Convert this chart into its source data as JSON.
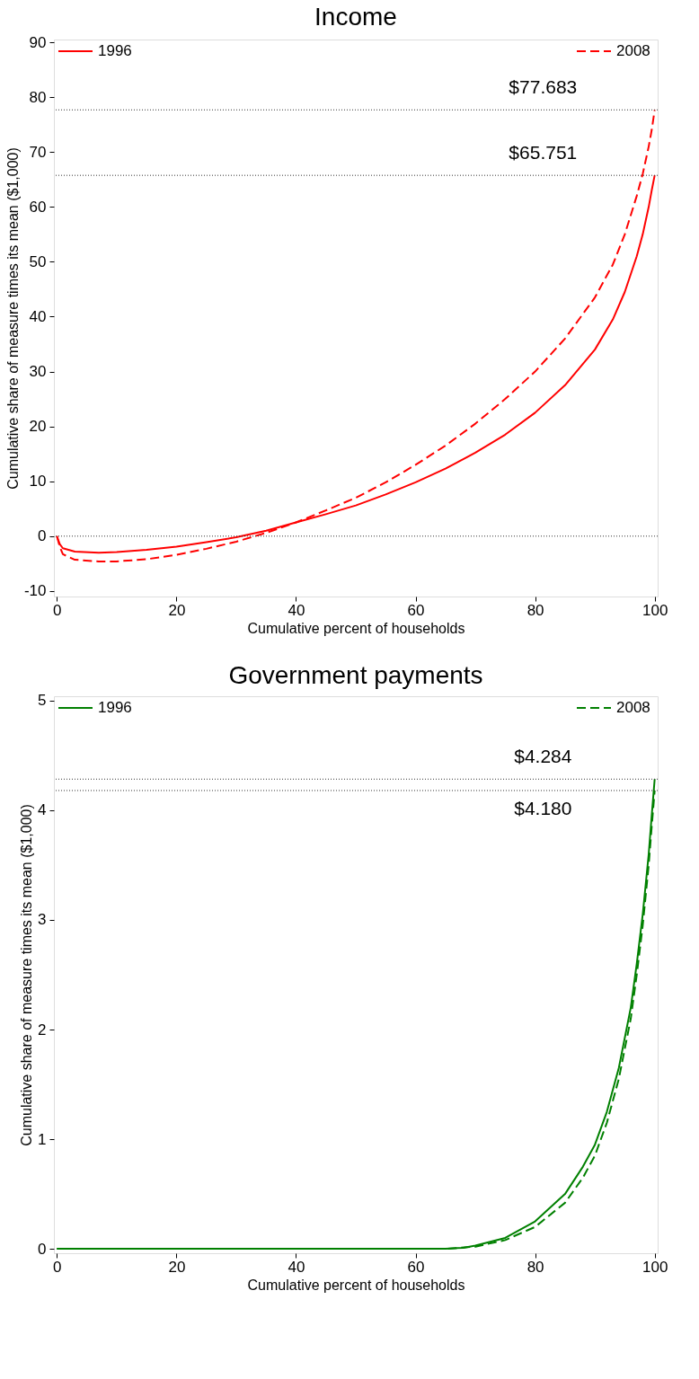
{
  "chart_data": [
    {
      "type": "line",
      "title": "Income",
      "xlabel": "Cumulative percent of households",
      "ylabel": "Cumulative share of measure times its mean ($1,000)",
      "xlim": [
        -0.5,
        100.5
      ],
      "xticks": [
        0,
        20,
        40,
        60,
        80,
        100
      ],
      "ylim": [
        -11,
        90.5
      ],
      "yticks": [
        -10,
        0,
        10,
        20,
        30,
        40,
        50,
        60,
        70,
        80,
        90
      ],
      "grid": false,
      "legend": "top",
      "ref_lines": [
        {
          "axis": "y",
          "value": 77.683,
          "label": "$77.683",
          "line_style": "dotted",
          "color": "#333333"
        },
        {
          "axis": "y",
          "value": 65.751,
          "label": "$65.751",
          "line_style": "dotted",
          "color": "#333333"
        },
        {
          "axis": "y",
          "value": 0,
          "label": null,
          "line_style": "dotted",
          "color": "#333333"
        }
      ],
      "series": [
        {
          "name": "1996",
          "color": "#ff0000",
          "line_style": "solid",
          "x": [
            0,
            0.5,
            1,
            3,
            7,
            10,
            15,
            20,
            25,
            30,
            35,
            40,
            45,
            50,
            55,
            60,
            65,
            70,
            75,
            80,
            85,
            90,
            93,
            95,
            97,
            98,
            99,
            99.5,
            100
          ],
          "values": [
            0,
            -1.5,
            -2.2,
            -2.8,
            -3.0,
            -2.9,
            -2.5,
            -1.9,
            -1.1,
            -0.2,
            1.0,
            2.5,
            4.0,
            5.6,
            7.6,
            9.8,
            12.3,
            15.2,
            18.5,
            22.5,
            27.5,
            34,
            39.5,
            44.5,
            51,
            55,
            60,
            63,
            65.751
          ]
        },
        {
          "name": "2008",
          "color": "#ff0000",
          "line_style": "dashed",
          "x": [
            0,
            0.5,
            1,
            3,
            7,
            10,
            15,
            20,
            25,
            30,
            35,
            40,
            45,
            50,
            55,
            60,
            65,
            70,
            75,
            80,
            85,
            90,
            93,
            95,
            97,
            98,
            99,
            99.5,
            100
          ],
          "values": [
            0,
            -2.0,
            -3.3,
            -4.3,
            -4.6,
            -4.6,
            -4.2,
            -3.4,
            -2.3,
            -1.0,
            0.6,
            2.5,
            4.7,
            7.0,
            9.8,
            13.0,
            16.5,
            20.5,
            25,
            30,
            36,
            43.5,
            49.5,
            55,
            62,
            66,
            71,
            74,
            77.683
          ]
        }
      ]
    },
    {
      "type": "line",
      "title": "Government payments",
      "xlabel": "Cumulative percent of households",
      "ylabel": "Cumulative share of measure times its mean ($1,000)",
      "xlim": [
        -0.5,
        100.5
      ],
      "xticks": [
        0,
        20,
        40,
        60,
        80,
        100
      ],
      "ylim": [
        -0.04,
        5.04
      ],
      "yticks": [
        0,
        1,
        2,
        3,
        4,
        5
      ],
      "grid": false,
      "legend": "top",
      "ref_lines": [
        {
          "axis": "y",
          "value": 4.284,
          "label": "$4.284",
          "line_style": "dotted",
          "color": "#333333"
        },
        {
          "axis": "y",
          "value": 4.18,
          "label": "$4.180",
          "line_style": "dotted",
          "color": "#333333"
        }
      ],
      "series": [
        {
          "name": "1996",
          "color": "#008000",
          "line_style": "solid",
          "x": [
            0,
            20,
            40,
            60,
            65,
            68,
            70,
            75,
            80,
            85,
            88,
            90,
            92,
            94,
            96,
            97,
            98,
            99,
            99.5,
            100
          ],
          "values": [
            0,
            0,
            0,
            0,
            0,
            0.01,
            0.03,
            0.1,
            0.25,
            0.5,
            0.75,
            0.95,
            1.25,
            1.65,
            2.2,
            2.6,
            3.05,
            3.6,
            3.95,
            4.284
          ]
        },
        {
          "name": "2008",
          "color": "#008000",
          "line_style": "dashed",
          "x": [
            0,
            20,
            40,
            60,
            65,
            70,
            75,
            80,
            85,
            88,
            90,
            92,
            94,
            96,
            97,
            98,
            99,
            99.5,
            100
          ],
          "values": [
            0,
            0,
            0,
            0,
            0,
            0.02,
            0.08,
            0.2,
            0.42,
            0.65,
            0.85,
            1.15,
            1.55,
            2.1,
            2.5,
            2.95,
            3.5,
            3.85,
            4.18
          ]
        }
      ]
    }
  ]
}
